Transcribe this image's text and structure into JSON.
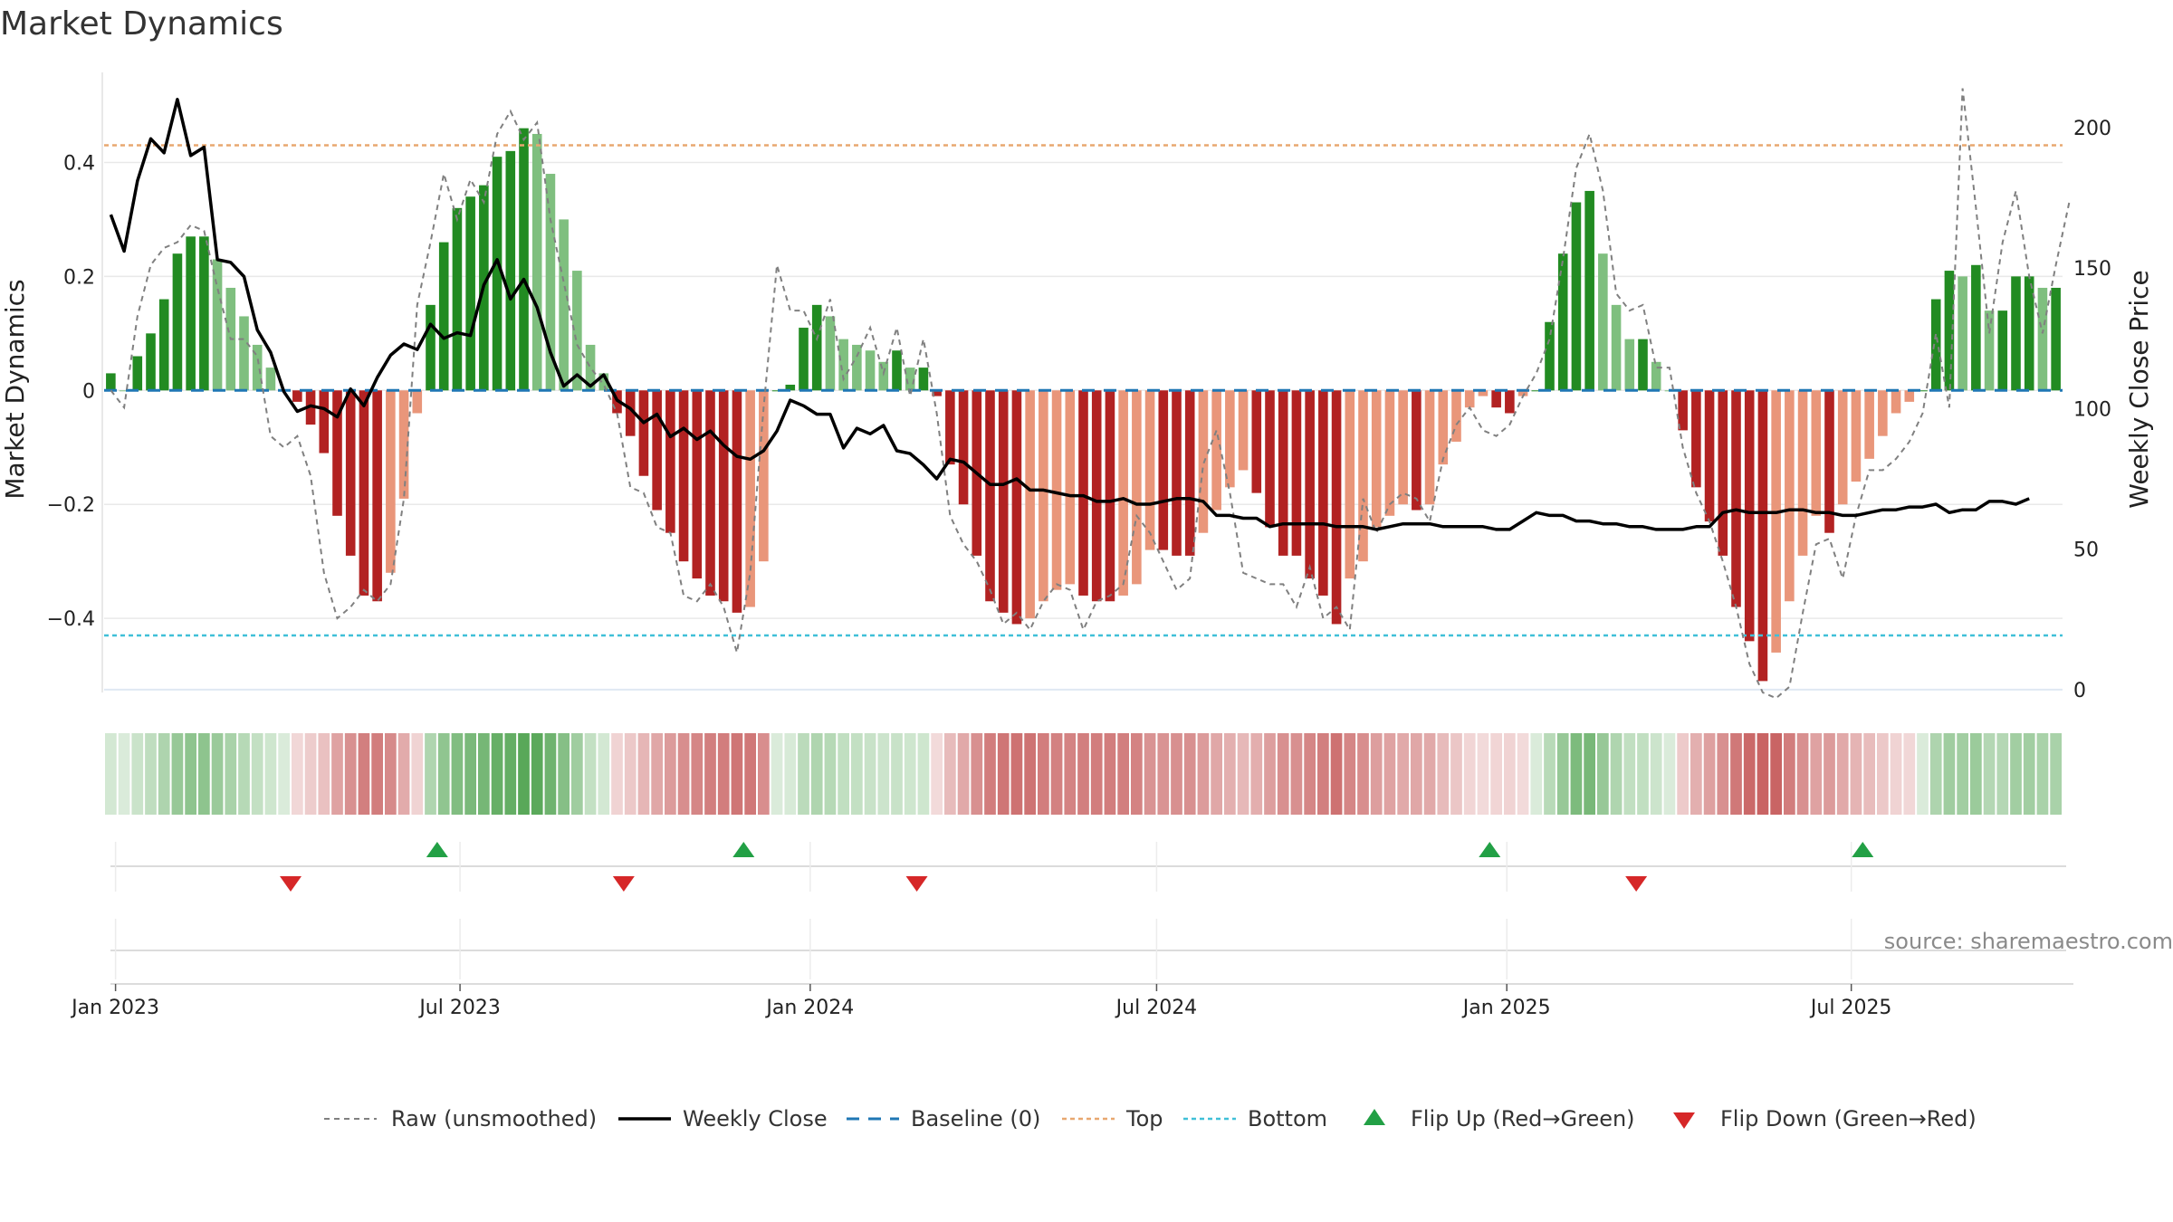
{
  "chart_data": {
    "type": "bar",
    "title": "Market Dynamics",
    "ylabel": "Market Dynamics",
    "y2label": "Weekly Close Price",
    "ylim": [
      -0.53,
      0.55
    ],
    "y2lim": [
      -1,
      218
    ],
    "yticks": [
      0.4,
      0.2,
      0,
      -0.2,
      -0.4
    ],
    "ytick_labels": [
      "0.4",
      "0.2",
      "0",
      "−0.2",
      "−0.4"
    ],
    "y2ticks": [
      200,
      150,
      100,
      50,
      0
    ],
    "y2tick_labels": [
      "200",
      "150",
      "100",
      "50",
      "0"
    ],
    "top_threshold": 0.43,
    "bottom_threshold": -0.43,
    "baseline": 0,
    "x_start": "2022-12-26",
    "x_end": "2025-10-20",
    "xticks": [
      "2023-01-01",
      "2023-07-01",
      "2024-01-01",
      "2024-07-01",
      "2025-01-01",
      "2025-07-01"
    ],
    "xtick_labels": [
      "Jan 2023",
      "Jul 2023",
      "Jan 2024",
      "Jul 2024",
      "Jan 2025",
      "Jul 2025"
    ],
    "legend_position": "bottom-center",
    "grid": true,
    "colors": {
      "strong_up": "#228b22",
      "weak_up": "#7fbf7f",
      "strong_down": "#b22222",
      "weak_down": "#e9967a",
      "raw": "#808080",
      "close": "#000000",
      "baseline": "#1f77b4",
      "top": "#e8a870",
      "bottom": "#40c0d8",
      "flip_up": "#22a045",
      "flip_down": "#d62728"
    },
    "weeks": 145,
    "smoothed": [
      0.03,
      0.0,
      0.06,
      0.1,
      0.16,
      0.24,
      0.27,
      0.27,
      0.23,
      0.18,
      0.13,
      0.08,
      0.04,
      0.0,
      -0.02,
      -0.06,
      -0.11,
      -0.22,
      -0.29,
      -0.36,
      -0.37,
      -0.32,
      -0.19,
      -0.04,
      0.15,
      0.26,
      0.32,
      0.34,
      0.36,
      0.41,
      0.42,
      0.46,
      0.45,
      0.38,
      0.3,
      0.21,
      0.08,
      0.03,
      -0.04,
      -0.08,
      -0.15,
      -0.21,
      -0.25,
      -0.3,
      -0.33,
      -0.36,
      -0.37,
      -0.39,
      -0.38,
      -0.3,
      0.0,
      0.01,
      0.11,
      0.15,
      0.13,
      0.09,
      0.08,
      0.07,
      0.05,
      0.07,
      0.04,
      0.04,
      -0.01,
      -0.13,
      -0.2,
      -0.29,
      -0.37,
      -0.39,
      -0.41,
      -0.4,
      -0.37,
      -0.35,
      -0.34,
      -0.36,
      -0.37,
      -0.37,
      -0.36,
      -0.34,
      -0.28,
      -0.28,
      -0.29,
      -0.29,
      -0.25,
      -0.21,
      -0.17,
      -0.14,
      -0.18,
      -0.24,
      -0.29,
      -0.29,
      -0.33,
      -0.36,
      -0.41,
      -0.33,
      -0.3,
      -0.24,
      -0.22,
      -0.2,
      -0.21,
      -0.2,
      -0.13,
      -0.09,
      -0.03,
      -0.01,
      -0.03,
      -0.04,
      -0.01,
      0.0,
      0.12,
      0.24,
      0.33,
      0.35,
      0.24,
      0.15,
      0.09,
      0.09,
      0.05,
      0.0,
      -0.07,
      -0.17,
      -0.23,
      -0.29,
      -0.38,
      -0.44,
      -0.51,
      -0.46,
      -0.37,
      -0.29,
      -0.22,
      -0.25,
      -0.2,
      -0.16,
      -0.12,
      -0.08,
      -0.04,
      -0.02,
      0.0,
      0.16,
      0.21,
      0.2,
      0.22,
      0.14,
      0.14,
      0.2,
      0.2,
      0.18,
      0.18
    ],
    "raw": [
      0.0,
      -0.03,
      0.13,
      0.22,
      0.25,
      0.26,
      0.29,
      0.28,
      0.18,
      0.09,
      0.09,
      0.06,
      -0.08,
      -0.1,
      -0.08,
      -0.15,
      -0.32,
      -0.4,
      -0.38,
      -0.35,
      -0.37,
      -0.34,
      -0.19,
      0.15,
      0.26,
      0.38,
      0.3,
      0.37,
      0.33,
      0.45,
      0.49,
      0.44,
      0.47,
      0.3,
      0.19,
      0.08,
      0.04,
      0.01,
      -0.04,
      -0.17,
      -0.18,
      -0.24,
      -0.25,
      -0.36,
      -0.37,
      -0.34,
      -0.38,
      -0.46,
      -0.32,
      -0.03,
      0.22,
      0.14,
      0.14,
      0.09,
      0.16,
      0.02,
      0.06,
      0.11,
      0.03,
      0.11,
      -0.01,
      0.09,
      -0.04,
      -0.22,
      -0.27,
      -0.3,
      -0.35,
      -0.41,
      -0.39,
      -0.42,
      -0.37,
      -0.34,
      -0.35,
      -0.42,
      -0.37,
      -0.36,
      -0.34,
      -0.22,
      -0.25,
      -0.3,
      -0.35,
      -0.33,
      -0.13,
      -0.07,
      -0.18,
      -0.32,
      -0.33,
      -0.34,
      -0.34,
      -0.38,
      -0.31,
      -0.4,
      -0.38,
      -0.42,
      -0.19,
      -0.25,
      -0.2,
      -0.18,
      -0.19,
      -0.23,
      -0.12,
      -0.06,
      -0.03,
      -0.07,
      -0.08,
      -0.06,
      -0.01,
      0.03,
      0.09,
      0.23,
      0.39,
      0.45,
      0.35,
      0.17,
      0.14,
      0.15,
      0.04,
      0.04,
      -0.1,
      -0.18,
      -0.23,
      -0.3,
      -0.38,
      -0.48,
      -0.53,
      -0.54,
      -0.52,
      -0.39,
      -0.27,
      -0.26,
      -0.33,
      -0.22,
      -0.14,
      -0.14,
      -0.12,
      -0.09,
      -0.04,
      0.1,
      -0.03,
      0.53,
      0.32,
      0.1,
      0.26,
      0.35,
      0.2,
      0.1,
      0.22,
      0.33
    ],
    "close": [
      169,
      156,
      181,
      196,
      191,
      210,
      190,
      193,
      153,
      152,
      147,
      128,
      120,
      106,
      99,
      101,
      100,
      97,
      107,
      101,
      111,
      119,
      123,
      121,
      130,
      125,
      127,
      126,
      144,
      153,
      139,
      146,
      136,
      120,
      108,
      112,
      108,
      112,
      103,
      100,
      95,
      98,
      90,
      93,
      89,
      92,
      87,
      83,
      82,
      85,
      92,
      103,
      101,
      98,
      98,
      86,
      93,
      91,
      94,
      85,
      84,
      80,
      75,
      82,
      81,
      77,
      73,
      73,
      75,
      71,
      71,
      70,
      69,
      69,
      67,
      67,
      68,
      66,
      66,
      67,
      68,
      68,
      67,
      62,
      62,
      61,
      61,
      58,
      59,
      59,
      59,
      59,
      58,
      58,
      58,
      57,
      58,
      59,
      59,
      59,
      58,
      58,
      58,
      58,
      57,
      57,
      60,
      63,
      62,
      62,
      60,
      60,
      59,
      59,
      58,
      58,
      57,
      57,
      57,
      58,
      58,
      63,
      64,
      63,
      63,
      63,
      64,
      64,
      63,
      63,
      62,
      62,
      63,
      64,
      64,
      65,
      65,
      66,
      63,
      64,
      64,
      67,
      67,
      66,
      68
    ]
  },
  "legend": {
    "raw": "Raw (unsmoothed)",
    "close": "Weekly Close",
    "baseline": "Baseline (0)",
    "top": "Top",
    "bottom": "Bottom",
    "flip_up": "Flip Up (Red→Green)",
    "flip_down": "Flip Down (Green→Red)"
  },
  "flips": {
    "up": [
      "2023-06-19",
      "2023-11-27",
      "2024-12-23",
      "2025-07-07"
    ],
    "down": [
      "2023-04-03",
      "2023-09-25",
      "2024-02-26",
      "2025-03-10"
    ]
  },
  "source": "source: sharemaestro.com"
}
